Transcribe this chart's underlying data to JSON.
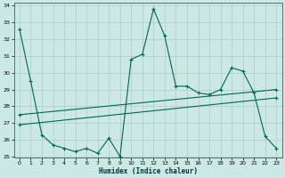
{
  "xlabel": "Humidex (Indice chaleur)",
  "ylabel": "",
  "bg_color": "#cce8e4",
  "grid_color": "#aaccc8",
  "line_color": "#006655",
  "ylim": [
    25,
    34
  ],
  "xlim": [
    -0.5,
    23.5
  ],
  "yticks": [
    25,
    26,
    27,
    28,
    29,
    30,
    31,
    32,
    33,
    34
  ],
  "xticks": [
    0,
    1,
    2,
    3,
    4,
    5,
    6,
    7,
    8,
    9,
    10,
    11,
    12,
    13,
    14,
    15,
    16,
    17,
    18,
    19,
    20,
    21,
    22,
    23
  ],
  "series1_x": [
    0,
    1,
    2,
    3,
    4,
    5,
    6,
    7,
    8,
    9,
    10,
    11,
    12,
    13,
    14,
    15,
    16,
    17,
    18,
    19,
    20,
    21,
    22,
    23
  ],
  "series1_y": [
    32.6,
    29.5,
    26.3,
    25.7,
    25.5,
    25.3,
    25.5,
    25.2,
    26.1,
    25.0,
    30.8,
    31.1,
    33.8,
    32.2,
    29.2,
    29.2,
    28.8,
    28.7,
    29.0,
    30.3,
    30.1,
    28.8,
    26.2,
    25.5
  ],
  "series2_x": [
    0,
    23
  ],
  "series2_y": [
    27.5,
    29.0
  ],
  "series3_x": [
    0,
    23
  ],
  "series3_y": [
    26.9,
    28.5
  ]
}
